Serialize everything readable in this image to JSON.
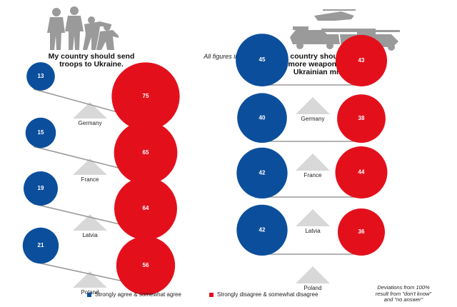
{
  "note_top": "All figures in %",
  "note_bottom": "Deviations from 100%\nresult from \"don't know\"\nand \"no answer\"",
  "legend": {
    "agree": "Strongly agree & somewhat agree",
    "disagree": "Strongly disagree & somewhat disagree"
  },
  "colors": {
    "agree": "#0b4f9c",
    "disagree": "#e3101c",
    "fulcrum": "#d8d8d8",
    "beam": "#9a9a9a",
    "silhouette": "#9a9a9a"
  },
  "icons": [
    "soldiers-silhouette-icon",
    "military-vehicles-silhouette-icon"
  ],
  "chart_data": [
    {
      "type": "balance-scale",
      "title": "My country should send\ntroops to Ukraine.",
      "categories": [
        "Germany",
        "France",
        "Latvia",
        "Poland"
      ],
      "series": [
        {
          "name": "Strongly agree & somewhat agree",
          "values": [
            13,
            15,
            19,
            21
          ]
        },
        {
          "name": "Strongly disagree & somewhat disagree",
          "values": [
            75,
            65,
            64,
            56
          ]
        }
      ]
    },
    {
      "type": "balance-scale",
      "title": "My country should provide\nmore weapons to the\nUkrainian military.",
      "categories": [
        "Germany",
        "France",
        "Latvia",
        "Poland"
      ],
      "series": [
        {
          "name": "Strongly agree & somewhat agree",
          "values": [
            45,
            40,
            42,
            42
          ]
        },
        {
          "name": "Strongly disagree & somewhat disagree",
          "values": [
            43,
            38,
            44,
            36
          ]
        }
      ]
    }
  ]
}
